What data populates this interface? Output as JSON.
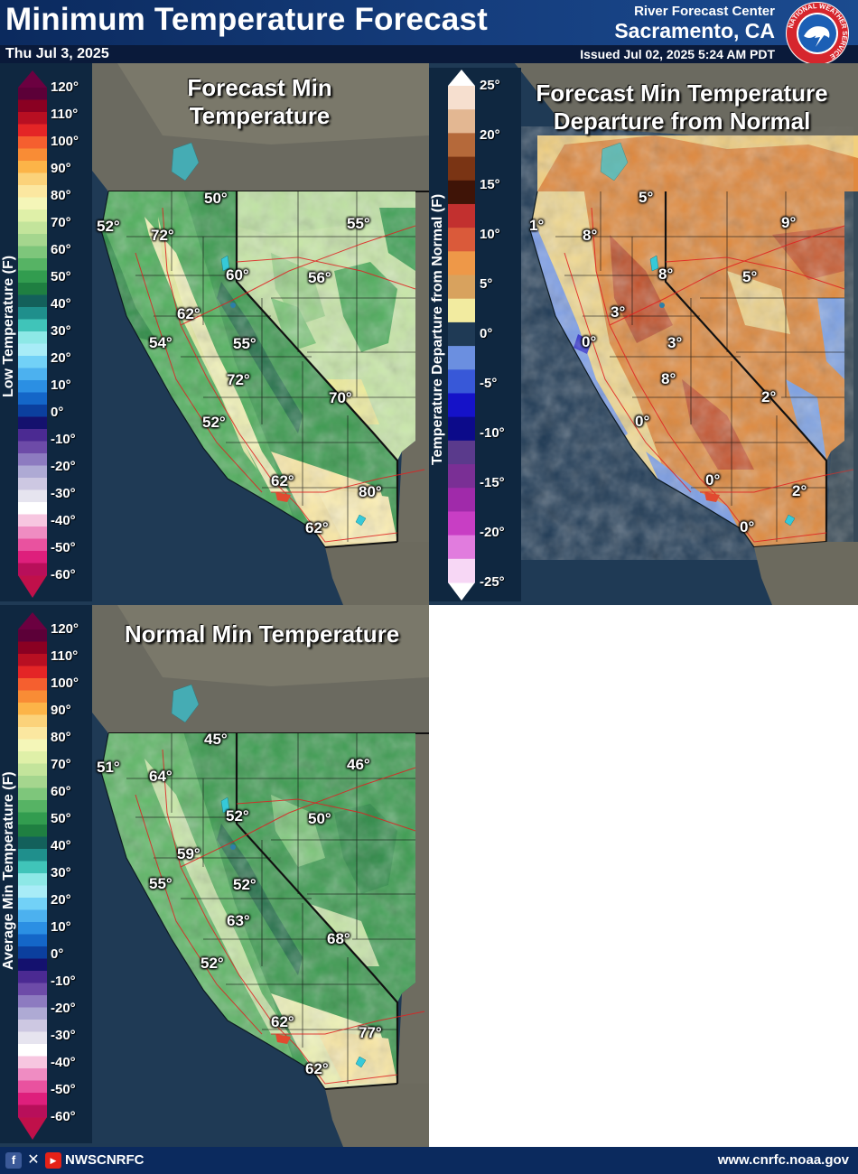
{
  "header": {
    "title": "Minimum Temperature Forecast",
    "date": "Thu Jul 3, 2025",
    "rfc_label": "River Forecast Center",
    "rfc_city": "Sacramento, CA",
    "issued": "Issued Jul 02, 2025 5:24 AM PDT",
    "logo_text": "NATIONAL WEATHER SERVICE"
  },
  "panels": {
    "forecast": {
      "title_line1": "Forecast Min",
      "title_line2": "Temperature",
      "legend_label": "Low Temperature (F)",
      "values": [
        "52°",
        "50°",
        "72°",
        "55°",
        "60°",
        "56°",
        "62°",
        "54°",
        "55°",
        "72°",
        "70°",
        "52°",
        "62°",
        "80°",
        "62°"
      ]
    },
    "departure": {
      "title_line1": "Forecast Min Temperature",
      "title_line2": "Departure from Normal",
      "legend_label": "Temperature Departure from Normal (F)",
      "values": [
        "1°",
        "5°",
        "8°",
        "9°",
        "8°",
        "5°",
        "3°",
        "0°",
        "3°",
        "8°",
        "2°",
        "0°",
        "0°",
        "2°",
        "0°"
      ]
    },
    "normal": {
      "title": "Normal Min Temperature",
      "legend_label": "Average Min Temperature (F)",
      "values": [
        "51°",
        "45°",
        "64°",
        "46°",
        "52°",
        "50°",
        "59°",
        "55°",
        "52°",
        "63°",
        "68°",
        "52°",
        "62°",
        "77°",
        "62°"
      ]
    }
  },
  "temp_legend_ticks": [
    "120°",
    "110°",
    "100°",
    "90°",
    "80°",
    "70°",
    "60°",
    "50°",
    "40°",
    "30°",
    "20°",
    "10°",
    "0°",
    "-10°",
    "-20°",
    "-30°",
    "-40°",
    "-50°",
    "-60°"
  ],
  "departure_legend_ticks": [
    "25°",
    "20°",
    "15°",
    "10°",
    "5°",
    "0°",
    "-5°",
    "-10°",
    "-15°",
    "-20°",
    "-25°"
  ],
  "colors": {
    "header_bg": "#0b2a5e",
    "map_water": "#1f3a55",
    "map_land_outside": "#6b6a60"
  },
  "footer": {
    "handle": "NWSCNRFC",
    "website": "www.cnrfc.noaa.gov",
    "icons": [
      "facebook-icon",
      "x-icon",
      "youtube-icon"
    ]
  }
}
